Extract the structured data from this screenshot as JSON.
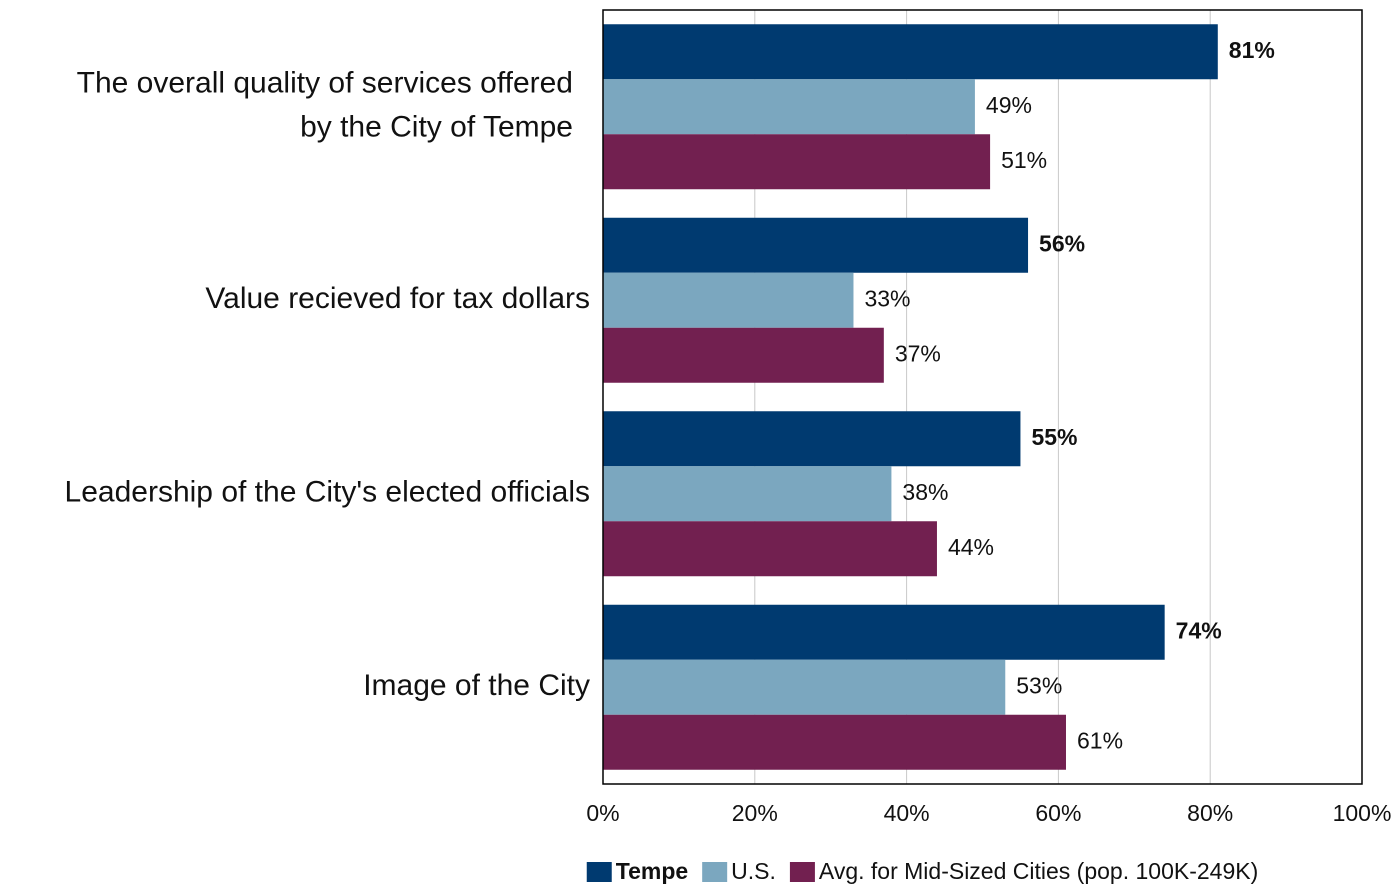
{
  "chart_data": {
    "type": "bar",
    "orientation": "horizontal",
    "categories": [
      [
        "The overall quality of services offered",
        "by the City of Tempe"
      ],
      [
        "Value recieved for tax dollars"
      ],
      [
        "Leadership of the City's elected officials"
      ],
      [
        "Image of the City"
      ]
    ],
    "series": [
      {
        "name": "Tempe",
        "color": "#003a70",
        "values": [
          81,
          56,
          55,
          74
        ],
        "value_labels": [
          "81%",
          "56%",
          "55%",
          "74%"
        ]
      },
      {
        "name": "U.S.",
        "color": "#7ba7bf",
        "values": [
          49,
          33,
          38,
          53
        ],
        "value_labels": [
          "49%",
          "33%",
          "38%",
          "53%"
        ]
      },
      {
        "name": "Avg. for Mid-Sized Cities (pop. 100K-249K)",
        "color": "#722050",
        "values": [
          51,
          37,
          44,
          61
        ],
        "value_labels": [
          "51%",
          "37%",
          "44%",
          "61%"
        ]
      }
    ],
    "xlim": [
      0,
      100
    ],
    "xticks": [
      {
        "value": 0,
        "label": "0%"
      },
      {
        "value": 20,
        "label": "20%"
      },
      {
        "value": 40,
        "label": "40%"
      },
      {
        "value": 60,
        "label": "60%"
      },
      {
        "value": 80,
        "label": "80%"
      },
      {
        "value": 100,
        "label": "100%"
      }
    ],
    "grid": true,
    "legend": "bottom"
  }
}
